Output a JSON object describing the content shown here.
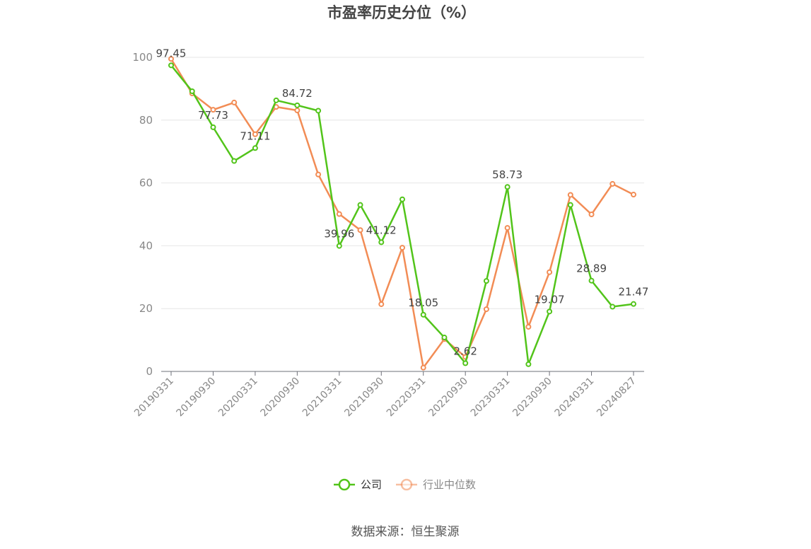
{
  "chart_data": {
    "type": "line",
    "title": "市盈率历史分位（%）",
    "source": "数据来源：恒生聚源",
    "ylim": [
      0,
      100
    ],
    "y_ticks": [
      0,
      20,
      40,
      60,
      80,
      100
    ],
    "x": [
      "20190331",
      "20190630",
      "20190930",
      "20191231",
      "20200331",
      "20200630",
      "20200930",
      "20201231",
      "20210331",
      "20210630",
      "20210930",
      "20211231",
      "20220331",
      "20220630",
      "20220930",
      "20221231",
      "20230331",
      "20230630",
      "20230930",
      "20231231",
      "20240331",
      "20240630",
      "20240827"
    ],
    "x_tick_labels_shown": [
      "20190331",
      "20190930",
      "20200331",
      "20200930",
      "20210331",
      "20210930",
      "20220331",
      "20220930",
      "20230331",
      "20230930",
      "20240331",
      "20240827"
    ],
    "grid": "horizontal",
    "legend_position": "bottom-center",
    "series": [
      {
        "name": "公司",
        "color": "#52c41a",
        "values": [
          97.45,
          89.2,
          77.73,
          67.0,
          71.11,
          86.3,
          84.72,
          83.0,
          39.96,
          53.0,
          41.12,
          54.8,
          18.05,
          10.8,
          2.62,
          28.8,
          58.73,
          2.3,
          19.07,
          53.0,
          28.89,
          20.6,
          21.47
        ],
        "labels": {
          "0": "97.45",
          "2": "77.73",
          "4": "71.11",
          "6": "84.72",
          "8": "39.96",
          "10": "41.12",
          "12": "18.05",
          "14": "2.62",
          "16": "58.73",
          "18": "19.07",
          "20": "28.89",
          "22": "21.47"
        }
      },
      {
        "name": "行业中位数",
        "color": "#f28c55",
        "values": [
          99.5,
          88.5,
          83.3,
          85.6,
          75.5,
          84.2,
          83.1,
          62.7,
          50.1,
          45.0,
          21.4,
          39.4,
          1.2,
          10.3,
          4.6,
          19.8,
          45.7,
          14.2,
          31.6,
          56.2,
          50.0,
          59.7,
          56.3
        ]
      }
    ]
  }
}
